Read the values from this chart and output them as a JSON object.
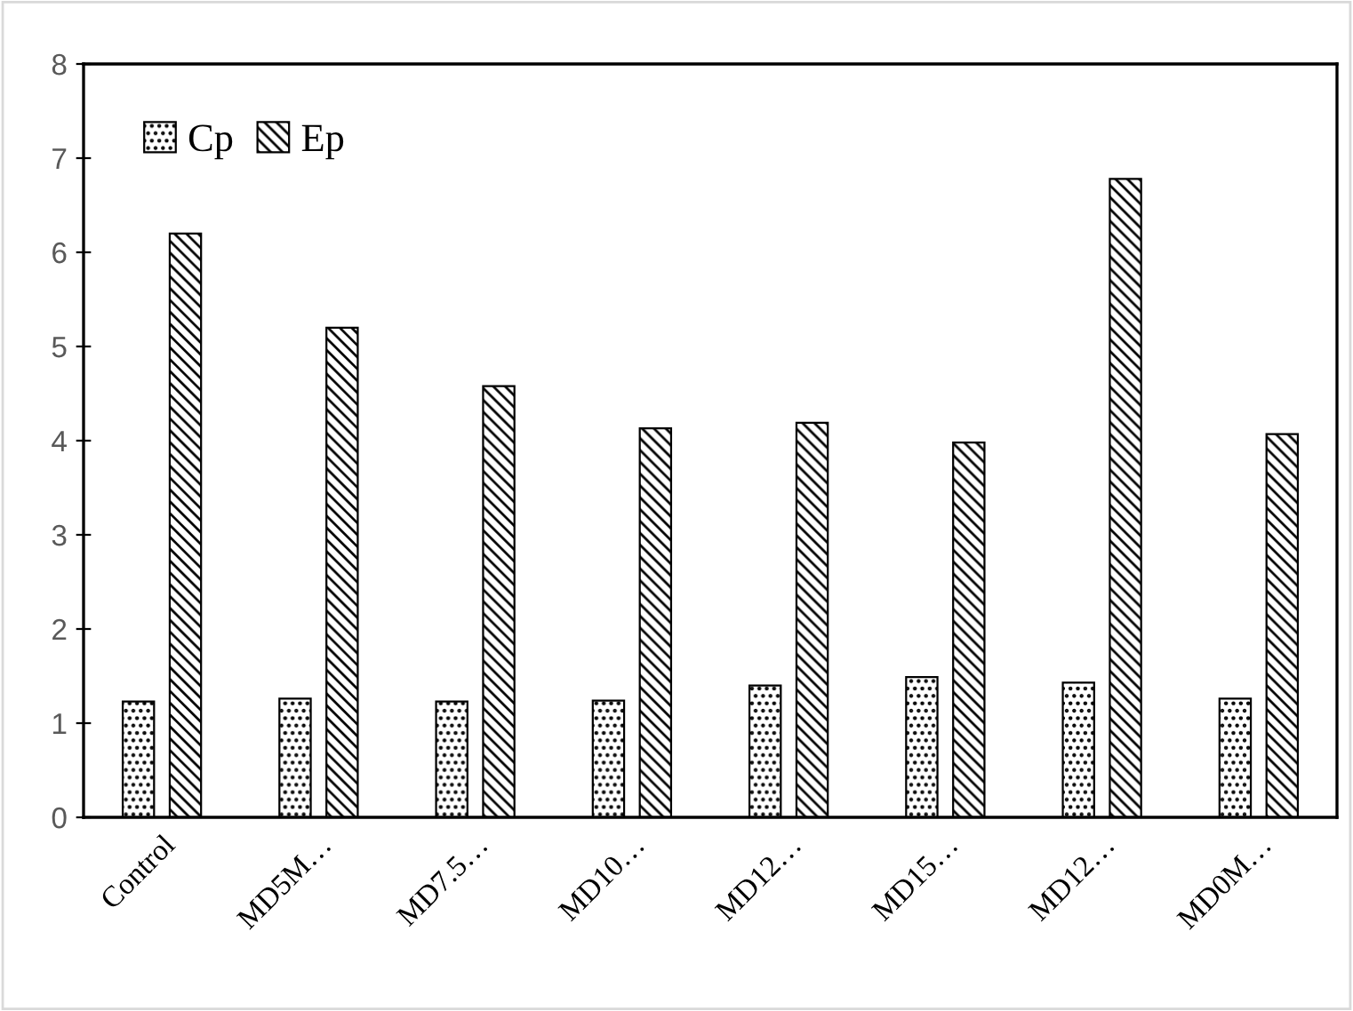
{
  "chart_data": {
    "type": "bar",
    "categories": [
      "Control",
      "MD5M…",
      "MD7.5…",
      "MD10…",
      "MD12…",
      "MD15…",
      "MD12…",
      "MD0M…"
    ],
    "series": [
      {
        "name": "Cp",
        "color": "#000000",
        "values": [
          1.23,
          1.26,
          1.23,
          1.24,
          1.4,
          1.49,
          1.43,
          1.26
        ]
      },
      {
        "name": "Ep",
        "color": "#000000",
        "values": [
          6.2,
          5.2,
          4.58,
          4.13,
          4.19,
          3.98,
          6.78,
          4.07
        ]
      }
    ],
    "ylim": [
      0,
      8
    ],
    "yticks": [
      0,
      1,
      2,
      3,
      4,
      5,
      6,
      7,
      8
    ],
    "grid": false,
    "legend": "top left"
  }
}
